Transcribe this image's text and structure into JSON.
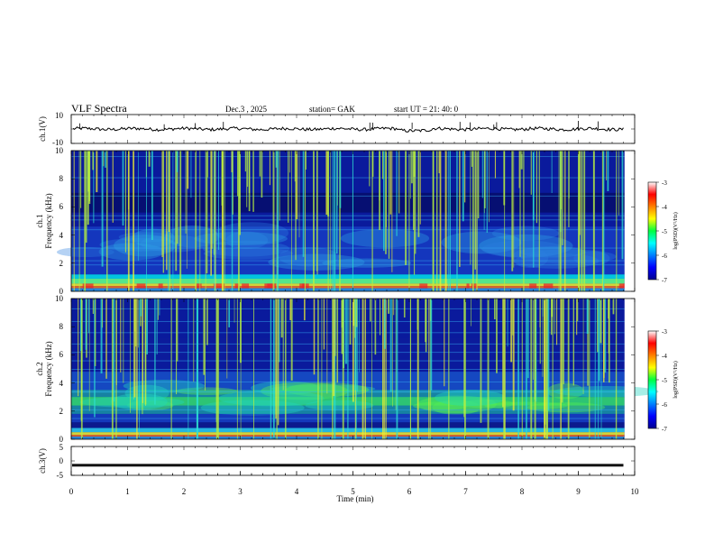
{
  "header": {
    "title": "VLF  Spectra",
    "date": "Dec.3  , 2025",
    "station": "station= GAK",
    "start": "start  UT  =    21: 40: 0"
  },
  "chart_data": [
    {
      "type": "line",
      "panel": "ch1-waveform",
      "ylabel": "ch.1(V)",
      "ylim": [
        -10,
        10
      ],
      "ytick_labels": [
        "10",
        "-10"
      ],
      "xlim": [
        0,
        10
      ],
      "baseline": 0,
      "spikes_min": [
        0.15,
        1.65,
        2.2,
        2.7,
        5.3,
        5.35,
        6.05,
        6.9,
        7.08,
        7.5,
        7.55,
        9.0,
        9.35
      ],
      "ends_at_min": 9.8
    },
    {
      "type": "heatmap",
      "panel": "ch1-spectrogram",
      "ylabel": "ch.1\nFrequency  (kHz)",
      "ylabel_lines": [
        "ch.1",
        "Frequency  (kHz)"
      ],
      "ylim": [
        0,
        10
      ],
      "ytick_labels": [
        "0",
        "2",
        "4",
        "6",
        "8",
        "10"
      ],
      "xlim": [
        0,
        10
      ],
      "colorbar": {
        "label": "log(PSD)(V²/Hz)",
        "range": [
          -7,
          -3
        ],
        "tick_labels": [
          "-7",
          "-6",
          "-5",
          "-4",
          "-3"
        ]
      }
    },
    {
      "type": "heatmap",
      "panel": "ch2-spectrogram",
      "ylabel": "ch.2\nFrequency  (kHz)",
      "ylabel_lines": [
        "ch.2",
        "Frequency  (kHz)"
      ],
      "ylim": [
        0,
        10
      ],
      "ytick_labels": [
        "0",
        "2",
        "4",
        "6",
        "8",
        "10"
      ],
      "xlim": [
        0,
        10
      ],
      "colorbar": {
        "label": "log(PSD)(V²/Hz)",
        "range": [
          -7,
          -3
        ],
        "tick_labels": [
          "-7",
          "-6",
          "-5",
          "-4",
          "-3"
        ]
      }
    },
    {
      "type": "line",
      "panel": "ch3-waveform",
      "ylabel": "ch.3(V)",
      "ylim": [
        -5,
        5
      ],
      "ytick_labels": [
        "5",
        "0",
        "-5"
      ],
      "xlim": [
        0,
        10
      ],
      "level": -1.5,
      "ends_at_min": 9.8
    }
  ],
  "xaxis": {
    "label": "Time  (min)",
    "tick_labels": [
      "0",
      "1",
      "2",
      "3",
      "4",
      "5",
      "6",
      "7",
      "8",
      "9",
      "10"
    ]
  }
}
